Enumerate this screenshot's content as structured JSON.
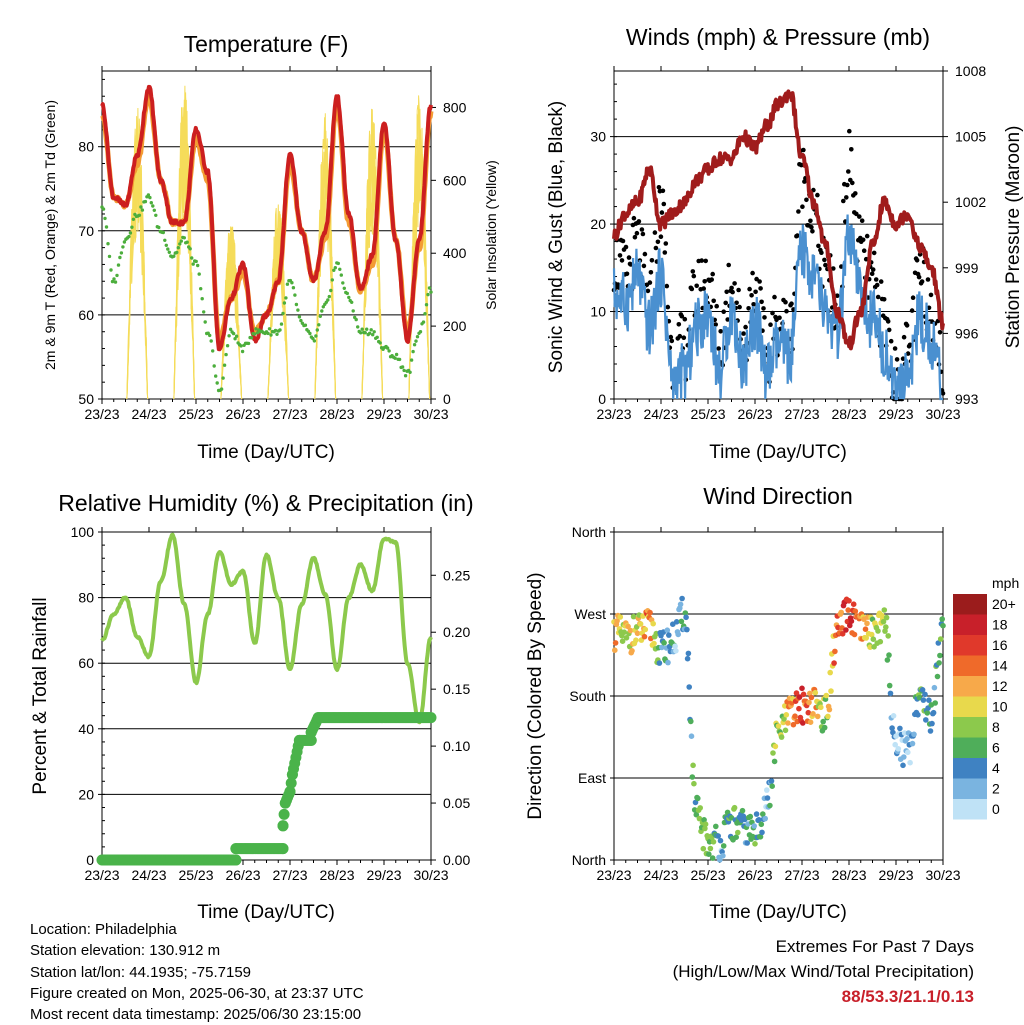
{
  "x_ticks": [
    "23/23",
    "24/23",
    "25/23",
    "26/23",
    "27/23",
    "28/23",
    "29/23",
    "30/23"
  ],
  "chart_data": [
    {
      "type": "line",
      "title": "Temperature (F)",
      "xlabel": "Time (Day/UTC)",
      "ylabel": "2m & 9m T (Red, Orange) & 2m Td (Green)",
      "y2label": "Solar Insolation (Yellow)",
      "ylim": [
        50,
        89
      ],
      "y2lim": [
        0,
        900
      ],
      "yticks": [
        50,
        60,
        70,
        80
      ],
      "y2ticks": [
        0,
        200,
        400,
        600,
        800
      ],
      "grid": "horizontal",
      "x": [
        0,
        0.25,
        0.5,
        0.75,
        1,
        1.25,
        1.5,
        1.75,
        2,
        2.25,
        2.5,
        2.75,
        3,
        3.25,
        3.5,
        3.75,
        4,
        4.25,
        4.5,
        4.75,
        5,
        5.25,
        5.5,
        5.75,
        6,
        6.25,
        6.5,
        6.75,
        7
      ],
      "series": [
        {
          "name": "2m T",
          "color": "#cc1f1f",
          "axis": "left",
          "style": "line",
          "values": [
            85,
            74,
            73,
            79,
            87,
            76,
            71,
            71,
            82,
            77,
            56,
            62,
            66,
            57,
            60,
            64,
            79,
            70,
            64,
            70,
            86,
            72,
            63,
            67,
            83,
            69,
            57,
            69,
            85
          ]
        },
        {
          "name": "9m T",
          "color": "#f39c33",
          "axis": "left",
          "style": "line",
          "values": [
            84,
            74,
            73,
            78,
            86,
            76,
            71,
            71,
            81,
            76,
            57,
            62,
            65,
            58,
            60,
            64,
            78,
            70,
            64,
            69,
            85,
            71,
            63,
            66,
            82,
            69,
            58,
            68,
            84
          ]
        },
        {
          "name": "2m Td",
          "color": "#4cae3c",
          "axis": "left",
          "style": "dots",
          "values": [
            73,
            64,
            69,
            72,
            74,
            70,
            67,
            69,
            66,
            58,
            51,
            58,
            56,
            58,
            58,
            58,
            64,
            59,
            57,
            61,
            66,
            62,
            58,
            58,
            56,
            55,
            53,
            58,
            63
          ]
        },
        {
          "name": "Solar Insolation",
          "color": "#f5dc5a",
          "axis": "right",
          "style": "diurnal",
          "peaks": [
            700,
            820,
            880,
            500,
            560,
            800,
            810,
            850,
            820
          ]
        }
      ]
    },
    {
      "type": "scatter",
      "title": "Winds (mph) & Pressure (mb)",
      "xlabel": "Time (Day/UTC)",
      "ylabel": "Sonic Wind & Gust (Blue, Black)",
      "y2label": "Station Pressure (Maroon)",
      "ylim": [
        0,
        37.5
      ],
      "y2lim": [
        993,
        1008
      ],
      "yticks": [
        0,
        10,
        20,
        30
      ],
      "y2ticks": [
        993,
        996,
        999,
        1002,
        1005,
        1008
      ],
      "grid": "horizontal",
      "x": [
        0,
        0.25,
        0.5,
        0.75,
        1,
        1.25,
        1.5,
        1.75,
        2,
        2.25,
        2.5,
        2.75,
        3,
        3.25,
        3.5,
        3.75,
        4,
        4.25,
        4.5,
        4.75,
        5,
        5.25,
        5.5,
        5.75,
        6,
        6.25,
        6.5,
        6.75,
        7
      ],
      "series": [
        {
          "name": "Sonic Wind",
          "color": "#4a90d0",
          "axis": "left",
          "style": "band",
          "values": [
            12,
            11,
            14,
            8,
            14,
            2,
            3,
            8,
            10,
            3,
            10,
            4,
            9,
            3,
            6,
            5,
            17,
            14,
            10,
            7,
            18,
            12,
            9,
            6,
            0,
            3,
            9,
            7,
            1
          ]
        },
        {
          "name": "Gust",
          "color": "#000000",
          "axis": "left",
          "style": "dots",
          "values": [
            16,
            14,
            18,
            11,
            22,
            5,
            6,
            12,
            14,
            6,
            14,
            7,
            13,
            5,
            9,
            8,
            26,
            21,
            14,
            10,
            27,
            17,
            13,
            9,
            2,
            5,
            14,
            11,
            3
          ]
        },
        {
          "name": "Station Pressure",
          "color": "#a01c1c",
          "axis": "right",
          "style": "line",
          "values": [
            1000.5,
            1001.5,
            1002.0,
            1003.5,
            1001.0,
            1001.5,
            1002.0,
            1003.0,
            1003.5,
            1004.0,
            1004.0,
            1005.0,
            1004.5,
            1005.5,
            1006.5,
            1007.0,
            1004.0,
            1002.0,
            1000.0,
            997.0,
            995.5,
            997.0,
            1000.0,
            1002.0,
            1001.0,
            1001.5,
            1000.0,
            999.0,
            996.5
          ]
        }
      ]
    },
    {
      "type": "line",
      "title": "Relative Humidity (%) & Precipitation (in)",
      "xlabel": "Time (Day/UTC)",
      "ylabel": "Percent & Total Rainfall",
      "ylim": [
        0,
        100
      ],
      "y2lim": [
        0,
        0.288
      ],
      "yticks": [
        0,
        20,
        40,
        60,
        80,
        100
      ],
      "y2ticks": [
        "0.00",
        "0.05",
        "0.10",
        "0.15",
        "0.20",
        "0.25"
      ],
      "grid": "horizontal",
      "x": [
        0,
        0.25,
        0.5,
        0.75,
        1,
        1.25,
        1.5,
        1.75,
        2,
        2.25,
        2.5,
        2.75,
        3,
        3.25,
        3.5,
        3.75,
        4,
        4.25,
        4.5,
        4.75,
        5,
        5.25,
        5.5,
        5.75,
        6,
        6.25,
        6.5,
        6.75,
        7
      ],
      "series": [
        {
          "name": "Relative Humidity",
          "color": "#8cc94c",
          "axis": "left",
          "style": "line",
          "values": [
            67,
            75,
            80,
            68,
            62,
            85,
            99,
            78,
            54,
            75,
            94,
            84,
            88,
            66,
            93,
            80,
            58,
            78,
            92,
            81,
            58,
            80,
            90,
            82,
            98,
            97,
            60,
            42,
            68
          ]
        },
        {
          "name": "Total Precipitation",
          "color": "#4ab34a",
          "axis": "right",
          "style": "steps",
          "steps": [
            [
              0,
              0
            ],
            [
              2.85,
              0
            ],
            [
              2.85,
              0.01
            ],
            [
              3.85,
              0.01
            ],
            [
              3.85,
              0.03
            ],
            [
              3.9,
              0.05
            ],
            [
              4.0,
              0.06
            ],
            [
              4.05,
              0.075
            ],
            [
              4.2,
              0.105
            ],
            [
              4.45,
              0.105
            ],
            [
              4.45,
              0.112
            ],
            [
              4.6,
              0.125
            ],
            [
              7,
              0.125
            ]
          ]
        }
      ]
    },
    {
      "type": "scatter",
      "title": "Wind Direction",
      "xlabel": "Time (Day/UTC)",
      "ylabel": "Direction (Colored By Speed)",
      "ylim": [
        0,
        360
      ],
      "yticks": [
        "North",
        "East",
        "South",
        "West",
        "North"
      ],
      "grid": "horizontal",
      "colorbar_title": "mph",
      "colorbar_labels": [
        "20+",
        "18",
        "16",
        "14",
        "12",
        "10",
        "8",
        "6",
        "4",
        "2",
        "0"
      ],
      "colorbar_colors": [
        "#9b1c1c",
        "#c8202a",
        "#e0392b",
        "#ef6a2a",
        "#f7a94a",
        "#e8d94c",
        "#8cc94c",
        "#4fae5a",
        "#3f82c2",
        "#7ab4e0",
        "#bfe2f6"
      ],
      "x": [
        0,
        0.25,
        0.5,
        0.75,
        1,
        1.25,
        1.5,
        1.75,
        2,
        2.25,
        2.5,
        2.75,
        3,
        3.25,
        3.5,
        3.75,
        4,
        4.25,
        4.5,
        4.75,
        5,
        5.25,
        5.5,
        5.75,
        6,
        6.25,
        6.5,
        6.75,
        7
      ],
      "series": [
        {
          "name": "Direction",
          "axis": "left",
          "style": "dots",
          "values": [
            250,
            245,
            250,
            255,
            230,
            240,
            270,
            50,
            20,
            20,
            40,
            35,
            30,
            60,
            140,
            160,
            170,
            170,
            160,
            250,
            270,
            250,
            250,
            260,
            130,
            120,
            180,
            160,
            260
          ],
          "speeds": [
            12,
            10,
            11,
            13,
            4,
            3,
            4,
            6,
            8,
            3,
            6,
            4,
            5,
            3,
            8,
            12,
            16,
            12,
            8,
            14,
            17,
            12,
            9,
            8,
            1,
            2,
            6,
            4,
            7
          ]
        }
      ]
    }
  ],
  "info": {
    "location": "Location: Philadelphia",
    "elevation": "Station elevation: 130.912 m",
    "latlon": "Station lat/lon: 44.1935; -75.7159",
    "created": "Figure created on Mon, 2025-06-30, at 23:37 UTC",
    "recent": "Most recent data timestamp: 2025/06/30 23:15:00"
  },
  "extremes": {
    "title": "Extremes For Past 7 Days",
    "subtitle": "(High/Low/Max Wind/Total Precipitation)",
    "values": "88/53.3/21.1/0.13",
    "values_color": "#c8202a"
  }
}
